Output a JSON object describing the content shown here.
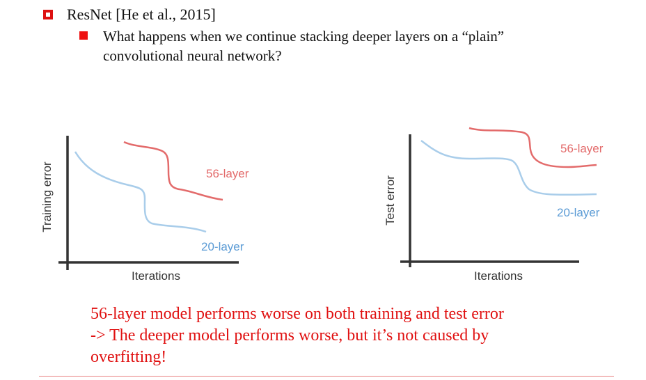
{
  "heading": {
    "title": "ResNet [He et al., 2015]",
    "question": "What happens when we continue stacking deeper layers on a “plain” convolutional neural network?"
  },
  "chart_data": [
    {
      "type": "line",
      "title": "",
      "xlabel": "Iterations",
      "ylabel": "Training error",
      "series": [
        {
          "name": "56-layer",
          "color": "#e36b6b"
        },
        {
          "name": "20-layer",
          "color": "#a9cdea"
        }
      ]
    },
    {
      "type": "line",
      "title": "",
      "xlabel": "Iterations",
      "ylabel": "Test error",
      "series": [
        {
          "name": "56-layer",
          "color": "#e36b6b"
        },
        {
          "name": "20-layer",
          "color": "#a9cdea"
        }
      ]
    }
  ],
  "conclusion": {
    "line1": "56-layer model performs worse on both training and test error",
    "line2": "-> The deeper model performs worse, but it’s not caused by",
    "line3": "overfitting!"
  }
}
